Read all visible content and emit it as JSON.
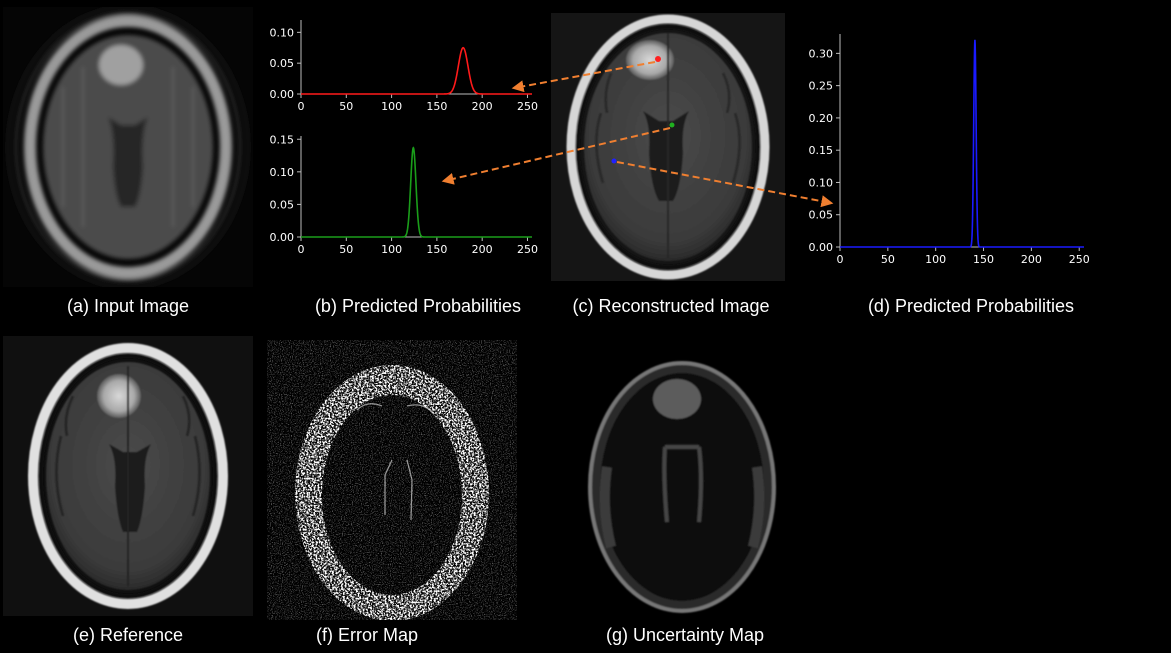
{
  "captions": {
    "a": "(a) Input Image",
    "b": "(b) Predicted Probabilities",
    "c": "(c) Reconstructed Image",
    "d": "(d) Predicted Probabilities",
    "e": "(e) Reference",
    "f": "(f) Error Map",
    "g": "(g) Uncertainty Map"
  },
  "colors": {
    "red": "#ff1a1a",
    "green": "#1a9e1a",
    "blue": "#1a1aff",
    "arrow": "#f07f30"
  },
  "chart_data": [
    {
      "type": "line",
      "xlim": [
        0,
        255
      ],
      "ylim": [
        0,
        0.12
      ],
      "x_ticks": [
        "0",
        "50",
        "100",
        "150",
        "200",
        "250"
      ],
      "y_ticks": [
        "0.00",
        "0.05",
        "0.10"
      ],
      "peak_x": 179,
      "peak_y": 0.075,
      "sigma": 5.3,
      "color": "#ff1a1a"
    },
    {
      "type": "line",
      "xlim": [
        0,
        255
      ],
      "ylim": [
        0,
        0.155
      ],
      "x_ticks": [
        "0",
        "50",
        "100",
        "150",
        "200",
        "250"
      ],
      "y_ticks": [
        "0.00",
        "0.05",
        "0.10",
        "0.15"
      ],
      "peak_x": 124,
      "peak_y": 0.137,
      "sigma": 2.9,
      "color": "#1a9e1a"
    },
    {
      "type": "line",
      "xlim": [
        0,
        255
      ],
      "ylim": [
        0,
        0.33
      ],
      "x_ticks": [
        "0",
        "50",
        "100",
        "150",
        "200",
        "250"
      ],
      "y_ticks": [
        "0.00",
        "0.05",
        "0.10",
        "0.15",
        "0.20",
        "0.25",
        "0.30"
      ],
      "peak_x": 141,
      "peak_y": 0.321,
      "sigma": 1.25,
      "color": "#1a1aff"
    }
  ]
}
